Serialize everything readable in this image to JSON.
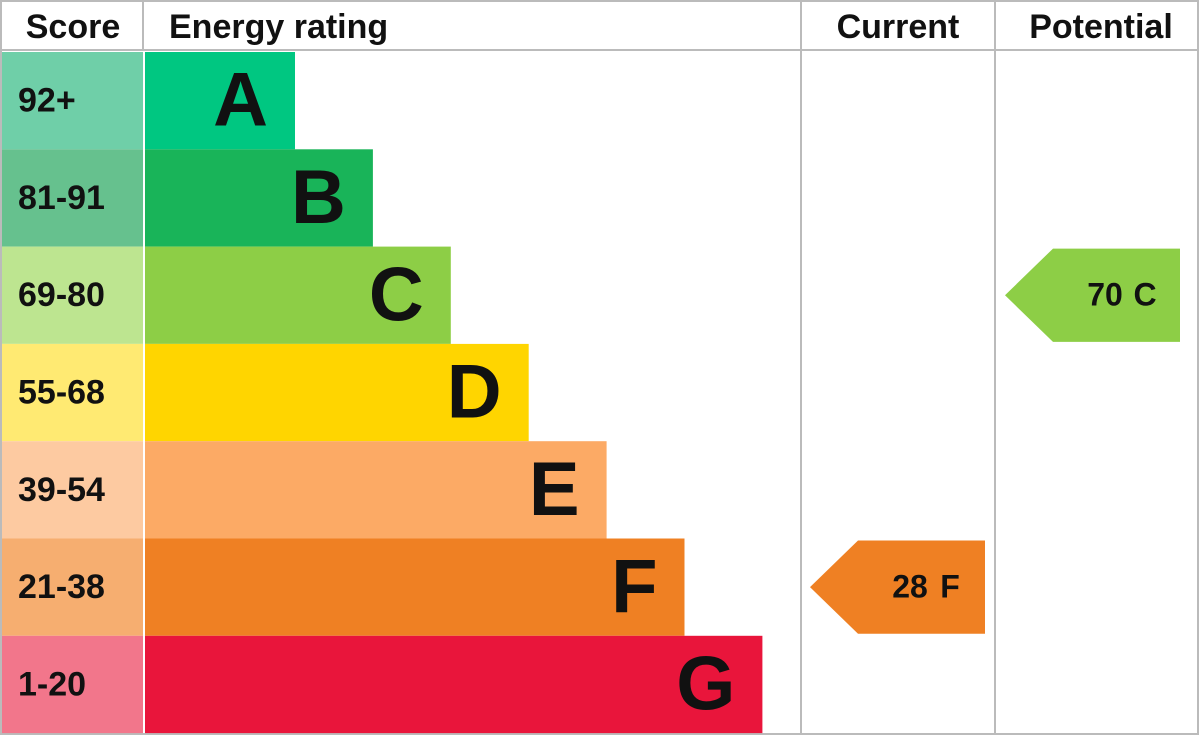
{
  "header": {
    "score": "Score",
    "energy_rating": "Energy rating",
    "current": "Current",
    "potential": "Potential"
  },
  "bands": [
    {
      "score": "92+",
      "letter": "A",
      "color": "#00c781",
      "score_color": "#6fcfa8"
    },
    {
      "score": "81-91",
      "letter": "B",
      "color": "#19b459",
      "score_color": "#66c18e"
    },
    {
      "score": "69-80",
      "letter": "C",
      "color": "#8dce46",
      "score_color": "#bde590"
    },
    {
      "score": "55-68",
      "letter": "D",
      "color": "#ffd500",
      "score_color": "#ffea72"
    },
    {
      "score": "39-54",
      "letter": "E",
      "color": "#fcaa65",
      "score_color": "#fdcaa1"
    },
    {
      "score": "21-38",
      "letter": "F",
      "color": "#ef8023",
      "score_color": "#f6ae70"
    },
    {
      "score": "1-20",
      "letter": "G",
      "color": "#e9153b",
      "score_color": "#f2768b"
    }
  ],
  "current": {
    "value": 28,
    "letter": "F"
  },
  "potential": {
    "value": 70,
    "letter": "C"
  }
}
